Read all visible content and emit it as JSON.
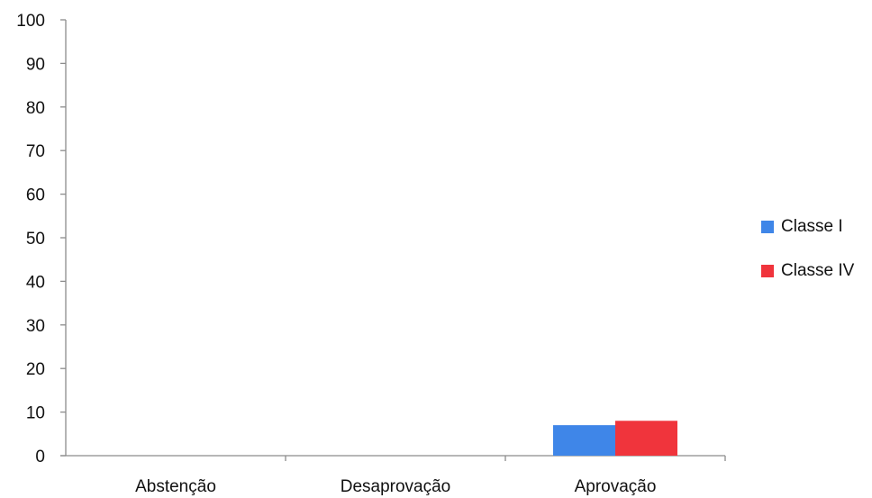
{
  "chart_data": {
    "type": "bar",
    "categories": [
      "Abstenção",
      "Desaprovação",
      "Aprovação"
    ],
    "series": [
      {
        "name": "Classe I",
        "values": [
          0,
          0,
          7
        ],
        "color": "#3f86e8"
      },
      {
        "name": "Classe IV",
        "values": [
          0,
          0,
          8
        ],
        "color": "#f0343c"
      }
    ],
    "ylim": [
      0,
      100
    ],
    "yticks": [
      0,
      10,
      20,
      30,
      40,
      50,
      60,
      70,
      80,
      90,
      100
    ],
    "grid": false,
    "legend_position": "right"
  }
}
